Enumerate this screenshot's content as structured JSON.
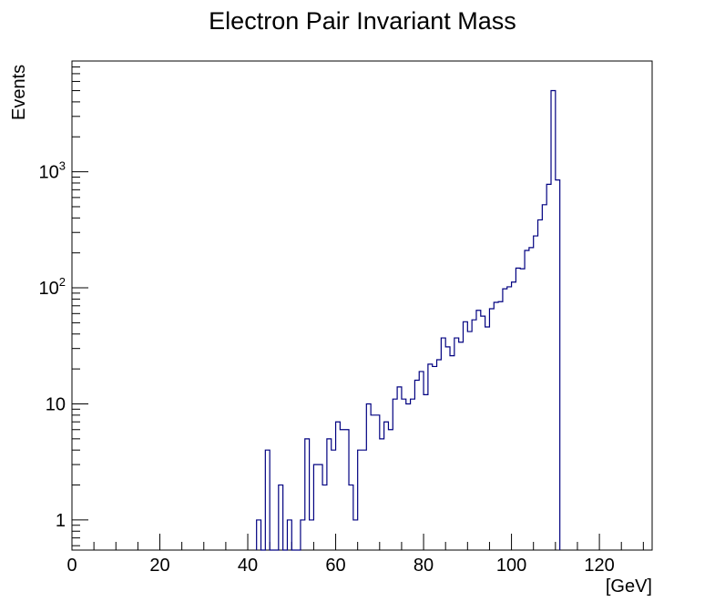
{
  "chart_data": {
    "type": "histogram",
    "title": "Electron Pair Invariant Mass",
    "xlabel": "[GeV]",
    "ylabel": "Events",
    "x_range": [
      0,
      132
    ],
    "y_range": [
      0.55,
      9000
    ],
    "y_scale": "log",
    "bin_width": 1,
    "line_color": "#000080",
    "x_ticks": [
      {
        "value": 0,
        "label": "0"
      },
      {
        "value": 20,
        "label": "20"
      },
      {
        "value": 40,
        "label": "40"
      },
      {
        "value": 60,
        "label": "60"
      },
      {
        "value": 80,
        "label": "80"
      },
      {
        "value": 100,
        "label": "100"
      },
      {
        "value": 120,
        "label": "120"
      }
    ],
    "y_ticks": [
      {
        "value": 1,
        "base": "1",
        "exp": ""
      },
      {
        "value": 10,
        "base": "10",
        "exp": ""
      },
      {
        "value": 100,
        "base": "10",
        "exp": "2"
      },
      {
        "value": 1000,
        "base": "10",
        "exp": "3"
      }
    ],
    "bins": [
      {
        "x": 42,
        "y": 1
      },
      {
        "x": 43,
        "y": 0
      },
      {
        "x": 44,
        "y": 4
      },
      {
        "x": 45,
        "y": 0
      },
      {
        "x": 46,
        "y": 0
      },
      {
        "x": 47,
        "y": 2
      },
      {
        "x": 48,
        "y": 0
      },
      {
        "x": 49,
        "y": 1
      },
      {
        "x": 50,
        "y": 0
      },
      {
        "x": 51,
        "y": 0
      },
      {
        "x": 52,
        "y": 1
      },
      {
        "x": 53,
        "y": 5
      },
      {
        "x": 54,
        "y": 1
      },
      {
        "x": 55,
        "y": 3
      },
      {
        "x": 56,
        "y": 3
      },
      {
        "x": 57,
        "y": 2
      },
      {
        "x": 58,
        "y": 5
      },
      {
        "x": 59,
        "y": 4
      },
      {
        "x": 60,
        "y": 7
      },
      {
        "x": 61,
        "y": 6
      },
      {
        "x": 62,
        "y": 6
      },
      {
        "x": 63,
        "y": 2
      },
      {
        "x": 64,
        "y": 1
      },
      {
        "x": 65,
        "y": 4
      },
      {
        "x": 66,
        "y": 4
      },
      {
        "x": 67,
        "y": 10
      },
      {
        "x": 68,
        "y": 8
      },
      {
        "x": 69,
        "y": 8
      },
      {
        "x": 70,
        "y": 5
      },
      {
        "x": 71,
        "y": 7
      },
      {
        "x": 72,
        "y": 6
      },
      {
        "x": 73,
        "y": 11
      },
      {
        "x": 74,
        "y": 14
      },
      {
        "x": 75,
        "y": 11
      },
      {
        "x": 76,
        "y": 10
      },
      {
        "x": 77,
        "y": 11
      },
      {
        "x": 78,
        "y": 16
      },
      {
        "x": 79,
        "y": 19
      },
      {
        "x": 80,
        "y": 12
      },
      {
        "x": 81,
        "y": 22
      },
      {
        "x": 82,
        "y": 21
      },
      {
        "x": 83,
        "y": 24
      },
      {
        "x": 84,
        "y": 37
      },
      {
        "x": 85,
        "y": 31
      },
      {
        "x": 86,
        "y": 26
      },
      {
        "x": 87,
        "y": 37
      },
      {
        "x": 88,
        "y": 34
      },
      {
        "x": 89,
        "y": 51
      },
      {
        "x": 90,
        "y": 42
      },
      {
        "x": 91,
        "y": 53
      },
      {
        "x": 92,
        "y": 64
      },
      {
        "x": 93,
        "y": 57
      },
      {
        "x": 94,
        "y": 46
      },
      {
        "x": 95,
        "y": 66
      },
      {
        "x": 96,
        "y": 75
      },
      {
        "x": 97,
        "y": 76
      },
      {
        "x": 98,
        "y": 98
      },
      {
        "x": 99,
        "y": 102
      },
      {
        "x": 100,
        "y": 112
      },
      {
        "x": 101,
        "y": 148
      },
      {
        "x": 102,
        "y": 146
      },
      {
        "x": 103,
        "y": 210
      },
      {
        "x": 104,
        "y": 222
      },
      {
        "x": 105,
        "y": 280
      },
      {
        "x": 106,
        "y": 385
      },
      {
        "x": 107,
        "y": 520
      },
      {
        "x": 108,
        "y": 780
      },
      {
        "x": 109,
        "y": 5000
      },
      {
        "x": 110,
        "y": 850
      }
    ]
  }
}
